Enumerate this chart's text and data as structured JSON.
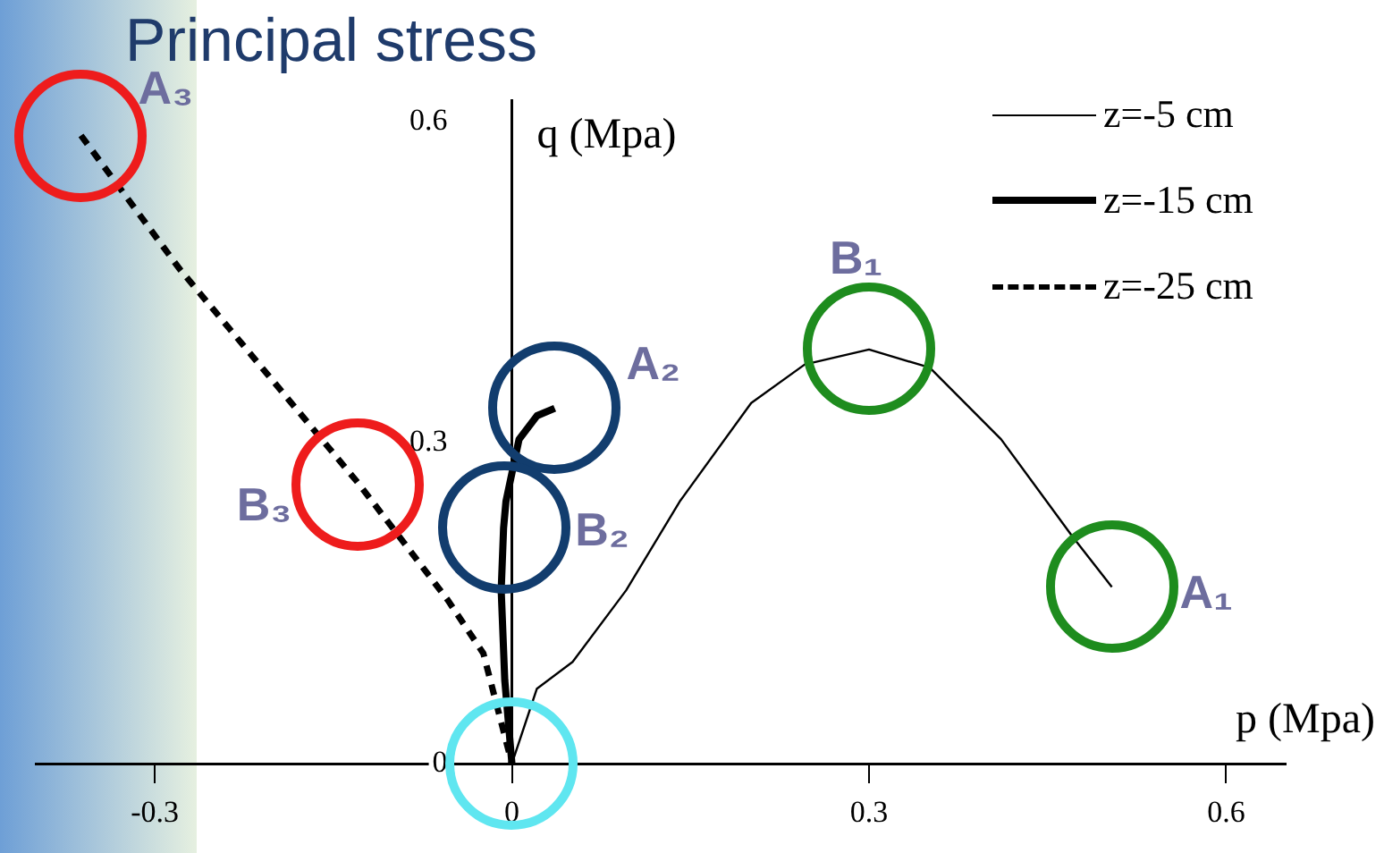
{
  "chart_data": {
    "type": "line",
    "title": "Principal stress",
    "xlabel": "p (Mpa)",
    "ylabel": "q (Mpa)",
    "xlim": [
      -0.4,
      0.65
    ],
    "ylim": [
      0,
      0.62
    ],
    "xticks": [
      -0.3,
      0,
      0.3,
      0.6
    ],
    "yticks": [
      0,
      0.3,
      0.6
    ],
    "legend": "top right",
    "marker": "none",
    "series": [
      {
        "name": "z=-5 cm",
        "color": "#000000",
        "line_style": "solid",
        "x": [
          0,
          0.021,
          0.051,
          0.096,
          0.141,
          0.201,
          0.246,
          0.3,
          0.351,
          0.411,
          0.471,
          0.504
        ],
        "values": [
          0,
          0.07,
          0.095,
          0.162,
          0.245,
          0.337,
          0.373,
          0.387,
          0.37,
          0.303,
          0.212,
          0.165
        ]
      },
      {
        "name": "z=-15 cm",
        "color": "#000000",
        "line_style": "solid",
        "x": [
          0,
          -0.006,
          -0.009,
          -0.007,
          -0.005,
          0.006,
          0.021,
          0.036
        ],
        "values": [
          0,
          0.078,
          0.162,
          0.22,
          0.245,
          0.303,
          0.325,
          0.332
        ]
      },
      {
        "name": "z=-25 cm",
        "color": "#000000",
        "line_style": "dashed",
        "x": [
          -0.362,
          -0.279,
          -0.204,
          -0.129,
          -0.054,
          -0.024,
          0
        ],
        "values": [
          0.587,
          0.462,
          0.362,
          0.262,
          0.153,
          0.103,
          0
        ]
      }
    ],
    "annotations": [
      {
        "text": "A₁",
        "x": 0.504,
        "y": 0.165
      },
      {
        "text": "B₁",
        "x": 0.3,
        "y": 0.387
      },
      {
        "text": "A₂",
        "x": 0.036,
        "y": 0.332
      },
      {
        "text": "B₂",
        "x": -0.007,
        "y": 0.22
      },
      {
        "text": "A₃",
        "x": -0.362,
        "y": 0.587
      },
      {
        "text": "B₃",
        "x": -0.129,
        "y": 0.26
      }
    ]
  }
}
